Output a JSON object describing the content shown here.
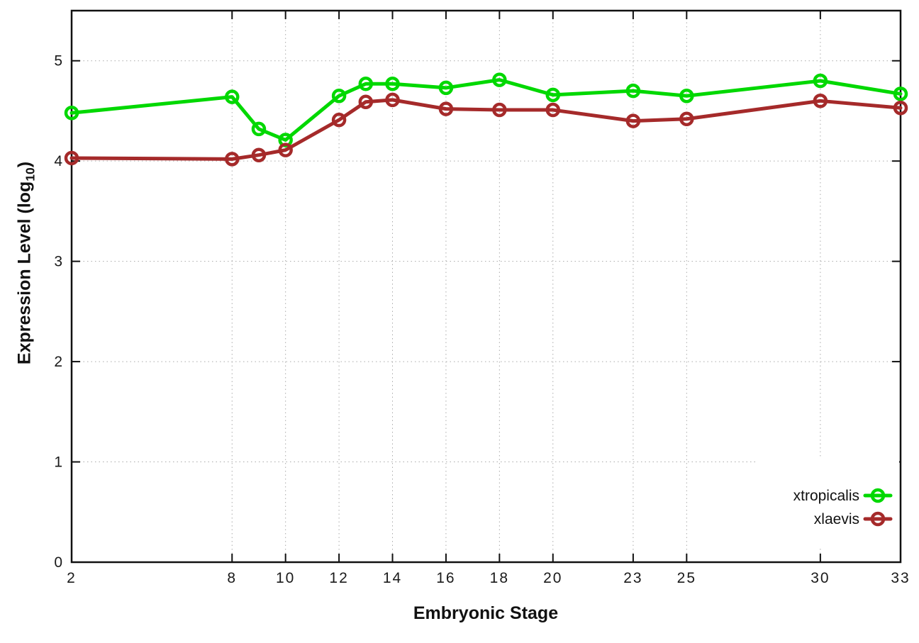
{
  "chart_data": {
    "type": "line",
    "title": "",
    "xlabel": "Embryonic Stage",
    "ylabel": "Expression Level (log10)",
    "ylabel_parts": {
      "prefix": "Expression Level (log",
      "sub": "10",
      "suffix": ")"
    },
    "x": [
      2,
      8,
      9,
      10,
      12,
      13,
      14,
      16,
      18,
      20,
      23,
      25,
      30,
      33
    ],
    "xticks": [
      2,
      8,
      10,
      12,
      14,
      16,
      18,
      20,
      23,
      25,
      30,
      33
    ],
    "yticks": [
      0,
      1,
      2,
      3,
      4,
      5
    ],
    "xlim": [
      2,
      33
    ],
    "ylim": [
      0,
      5.5
    ],
    "grid": "dotted",
    "legend_position": "inside-bottom-right",
    "series": [
      {
        "name": "xtropicalis",
        "color": "#00d800",
        "marker": "open-circle",
        "values": [
          4.48,
          4.64,
          4.32,
          4.21,
          4.65,
          4.77,
          4.77,
          4.73,
          4.81,
          4.66,
          4.7,
          4.65,
          4.8,
          4.67
        ]
      },
      {
        "name": "xlaevis",
        "color": "#a52a2a",
        "marker": "open-circle",
        "values": [
          4.03,
          4.02,
          4.06,
          4.11,
          4.41,
          4.59,
          4.61,
          4.52,
          4.51,
          4.51,
          4.4,
          4.42,
          4.6,
          4.53
        ]
      }
    ]
  },
  "colors": {
    "background": "#ffffff",
    "axis": "#111111",
    "grid": "#aaaaaa",
    "tick_text": "#1a1a1a",
    "legend_box": "#ffffff"
  }
}
